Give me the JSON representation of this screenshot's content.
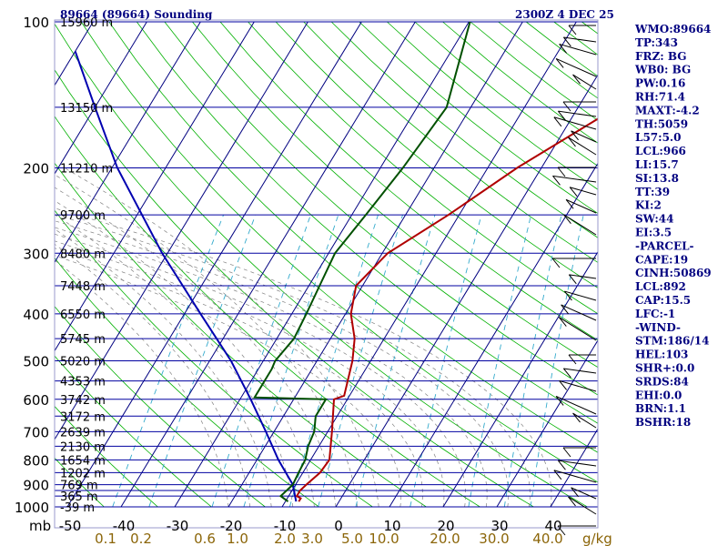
{
  "header": {
    "station": "89664 (89664) Sounding",
    "time": "2300Z  4 DEC 25"
  },
  "indices": [
    "WMO:89664",
    "TP:343",
    "FRZ: BG",
    "WB0: BG",
    "PW:0.16",
    "RH:71.4",
    "MAXT:-4.2",
    "TH:5059",
    "L57:5.0",
    "LCL:966",
    "LI:15.7",
    "SI:13.8",
    "TT:39",
    "KI:2",
    "SW:44",
    "EI:3.5",
    "-PARCEL-",
    "CAPE:19",
    "CINH:50869",
    "LCL:892",
    "CAP:15.5",
    "LFC:-1",
    "-WIND-",
    "STM:186/14",
    "HEL:103",
    "SHR+:0.0",
    "SRDS:84",
    "EHI:0.0",
    "BRN:1.1",
    "BSHR:18"
  ],
  "colors": {
    "background": "#ffffff",
    "isobar": "#0000a0",
    "isotherm": "#000080",
    "dry_adiabat": "#00b000",
    "moist_adiabat": "#808080",
    "mixing_ratio": "#33aacc",
    "temperature": "#b00000",
    "dewpoint": "#005000",
    "parcel": "#0000b0",
    "label_text": "#000080",
    "mixing_label": "#8b6508"
  },
  "chart_data": {
    "type": "skew-t",
    "title": "89664 (89664) Sounding",
    "pressure_levels": [
      100,
      200,
      300,
      400,
      500,
      600,
      700,
      800,
      900,
      1000
    ],
    "pressure_labels": [
      "100",
      "200",
      "300",
      "400",
      "500",
      "600",
      "700",
      "800",
      "900",
      "1000"
    ],
    "isobar_pressures": [
      100,
      150,
      200,
      250,
      300,
      350,
      400,
      450,
      500,
      550,
      600,
      650,
      700,
      750,
      800,
      850,
      900,
      925,
      950,
      1000
    ],
    "height_labels": [
      {
        "p": 100,
        "text": "15960 m"
      },
      {
        "p": 150,
        "text": "13150 m"
      },
      {
        "p": 200,
        "text": "11210 m"
      },
      {
        "p": 250,
        "text": "9700 m"
      },
      {
        "p": 300,
        "text": "8480 m"
      },
      {
        "p": 350,
        "text": "7448 m"
      },
      {
        "p": 400,
        "text": "6550 m"
      },
      {
        "p": 450,
        "text": "5745 m"
      },
      {
        "p": 500,
        "text": "5020 m"
      },
      {
        "p": 550,
        "text": "4353 m"
      },
      {
        "p": 600,
        "text": "3742 m"
      },
      {
        "p": 650,
        "text": "3172 m"
      },
      {
        "p": 700,
        "text": "2639 m"
      },
      {
        "p": 750,
        "text": "2130 m"
      },
      {
        "p": 800,
        "text": "1654 m"
      },
      {
        "p": 850,
        "text": "1202 m"
      },
      {
        "p": 900,
        "text": "769 m"
      },
      {
        "p": 950,
        "text": "365 m"
      },
      {
        "p": 1000,
        "text": "-39 m"
      }
    ],
    "temperature_ticks": [
      -50,
      -40,
      -30,
      -20,
      -10,
      0,
      10,
      20,
      30,
      40
    ],
    "temperature_tick_labels": [
      "-50",
      "-40",
      "-30",
      "-20",
      "-10",
      "0",
      "10",
      "20",
      "30",
      "40"
    ],
    "pressure_axis_unit": "mb",
    "mixing_ratio_labels": [
      "0.1",
      "0.2",
      "0.6",
      "1.0",
      "2.0",
      "3.0",
      "5.0",
      "10.0",
      "20.0",
      "30.0",
      "40.0"
    ],
    "mixing_ratio_unit": "g/kg",
    "xlim": [
      -50,
      50
    ],
    "ylim": [
      1000,
      100
    ],
    "temperature_profile": [
      {
        "p": 975,
        "t": -7.5
      },
      {
        "p": 960,
        "t": -7.5
      },
      {
        "p": 950,
        "t": -8.5
      },
      {
        "p": 925,
        "t": -8.5
      },
      {
        "p": 900,
        "t": -8.0
      },
      {
        "p": 850,
        "t": -6.8
      },
      {
        "p": 800,
        "t": -6.5
      },
      {
        "p": 700,
        "t": -9.2
      },
      {
        "p": 600,
        "t": -12.5
      },
      {
        "p": 590,
        "t": -11.0
      },
      {
        "p": 500,
        "t": -13.4
      },
      {
        "p": 450,
        "t": -15.5
      },
      {
        "p": 400,
        "t": -19.0
      },
      {
        "p": 350,
        "t": -21.2
      },
      {
        "p": 300,
        "t": -19.0
      },
      {
        "p": 250,
        "t": -12.0
      },
      {
        "p": 200,
        "t": -4.5
      },
      {
        "p": 150,
        "t": 7.2
      },
      {
        "p": 100,
        "t": 24.5
      }
    ],
    "dewpoint_profile": [
      {
        "p": 975,
        "t": -9.5
      },
      {
        "p": 950,
        "t": -11.5
      },
      {
        "p": 900,
        "t": -10.5
      },
      {
        "p": 850,
        "t": -10.8
      },
      {
        "p": 800,
        "t": -11.0
      },
      {
        "p": 750,
        "t": -12.0
      },
      {
        "p": 700,
        "t": -12.5
      },
      {
        "p": 650,
        "t": -14.0
      },
      {
        "p": 600,
        "t": -14.0
      },
      {
        "p": 595,
        "t": -27.5
      },
      {
        "p": 520,
        "t": -27.5
      },
      {
        "p": 500,
        "t": -27.8
      },
      {
        "p": 450,
        "t": -26.8
      },
      {
        "p": 400,
        "t": -27.3
      },
      {
        "p": 350,
        "t": -28.0
      },
      {
        "p": 300,
        "t": -28.8
      },
      {
        "p": 250,
        "t": -27.4
      },
      {
        "p": 200,
        "t": -25.8
      },
      {
        "p": 150,
        "t": -24.5
      },
      {
        "p": 100,
        "t": -29.8
      }
    ],
    "parcel_profile": [
      {
        "p": 975,
        "t": -8.0
      },
      {
        "p": 900,
        "t": -10.5
      },
      {
        "p": 800,
        "t": -16.0
      },
      {
        "p": 700,
        "t": -21.5
      },
      {
        "p": 600,
        "t": -28.0
      },
      {
        "p": 500,
        "t": -36.0
      },
      {
        "p": 400,
        "t": -47.0
      },
      {
        "p": 300,
        "t": -61.0
      },
      {
        "p": 200,
        "t": -79.0
      },
      {
        "p": 150,
        "t": -90.0
      },
      {
        "p": 115,
        "t": -100.0
      }
    ],
    "wind_barbs_note": "wind barbs along right edge"
  }
}
